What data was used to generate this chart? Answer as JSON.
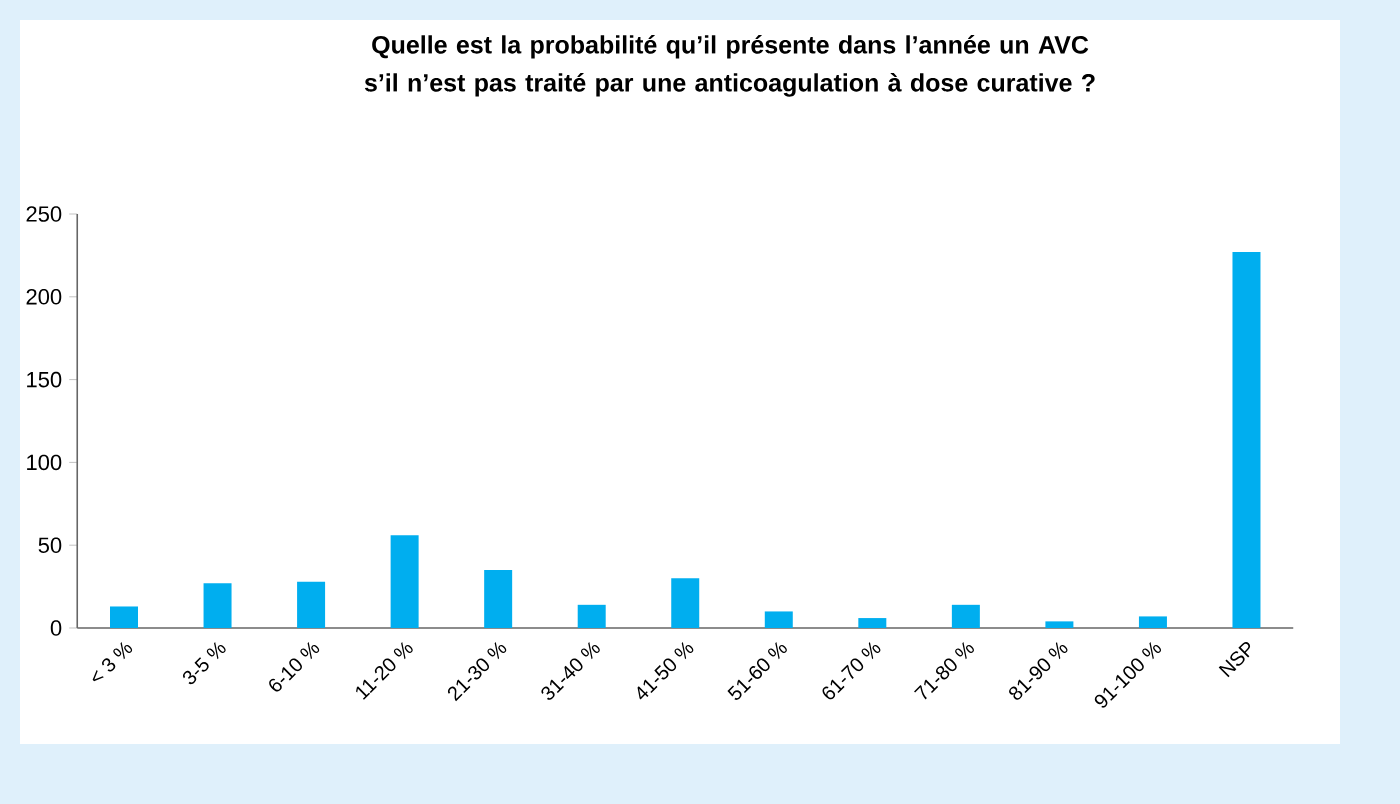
{
  "chart_data": {
    "type": "bar",
    "title": "Quelle est la probabilité qu’il présente dans l’année un AVC s’il n’est pas traité par une anticoagulation à dose curative ?",
    "categories": [
      "< 3 %",
      "3-5 %",
      "6-10 %",
      "11-20 %",
      "21-30 %",
      "31-40 %",
      "41-50 %",
      "51-60 %",
      "61-70 %",
      "71-80 %",
      "81-90 %",
      "91-100 %",
      "NSP"
    ],
    "values": [
      13,
      27,
      28,
      56,
      35,
      14,
      30,
      10,
      6,
      14,
      4,
      7,
      227
    ],
    "color": "#00aeef",
    "ylim": [
      0,
      250
    ],
    "yticks": [
      0,
      50,
      100,
      150,
      200,
      250
    ]
  }
}
